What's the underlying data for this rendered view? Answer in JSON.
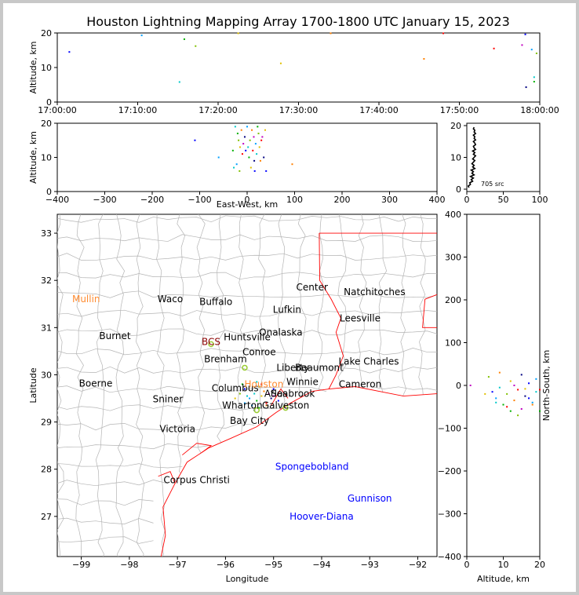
{
  "title": "Houston Lightning Mapping Array 1700-1800 UTC January 15, 2023",
  "colors": {
    "background": "#c8c8c8",
    "county_lines": "#b4b4b4",
    "state_lines": "#ff0000",
    "coast": "#ff0000",
    "station_text": "#0000ff",
    "highlight_city": "#ff8c32",
    "bcs": "#8b0000"
  },
  "chart_data": [
    {
      "id": "time_altitude",
      "type": "scatter",
      "ylabel": "Altitude, km",
      "xticks": [
        "17:00:00",
        "17:10:00",
        "17:20:00",
        "17:30:00",
        "17:40:00",
        "17:50:00",
        "18:00:00"
      ],
      "xlim_minutes": [
        0,
        60
      ],
      "yticks": [
        0,
        10,
        20
      ],
      "ylim": [
        0,
        20
      ],
      "points_minutes_km": [
        [
          1.5,
          14.5
        ],
        [
          10.5,
          19.3
        ],
        [
          15.2,
          5.8
        ],
        [
          15.8,
          18.2
        ],
        [
          17.2,
          16.2
        ],
        [
          27.8,
          11.2
        ],
        [
          45.6,
          12.5
        ],
        [
          54.3,
          15.5
        ],
        [
          57.8,
          16.5
        ],
        [
          58.3,
          4.3
        ],
        [
          58.2,
          19.6
        ],
        [
          59.0,
          15.2
        ],
        [
          59.3,
          7.2
        ],
        [
          59.3,
          5.9
        ],
        [
          59.6,
          14.1
        ],
        [
          22.5,
          19.9
        ],
        [
          34.0,
          19.9
        ],
        [
          48.0,
          19.9
        ]
      ]
    },
    {
      "id": "eastwest_altitude",
      "type": "scatter",
      "xlabel": "East-West, km",
      "ylabel": "Altitude, km",
      "xticks": [
        -400,
        -300,
        -200,
        -100,
        0,
        100,
        200,
        300,
        400
      ],
      "xlim": [
        -400,
        400
      ],
      "yticks": [
        0,
        10,
        20
      ],
      "ylim": [
        0,
        20
      ],
      "points_km": [
        [
          -110,
          15
        ],
        [
          -60,
          10
        ],
        [
          -25,
          19
        ],
        [
          -20,
          17
        ],
        [
          -18,
          15
        ],
        [
          -15,
          13
        ],
        [
          -12,
          18
        ],
        [
          -10,
          11
        ],
        [
          -8,
          14
        ],
        [
          -5,
          16
        ],
        [
          -3,
          12
        ],
        [
          0,
          19
        ],
        [
          2,
          13
        ],
        [
          4,
          10
        ],
        [
          6,
          15
        ],
        [
          8,
          7
        ],
        [
          10,
          18
        ],
        [
          12,
          12
        ],
        [
          14,
          16
        ],
        [
          15,
          9
        ],
        [
          16,
          6
        ],
        [
          18,
          14
        ],
        [
          20,
          11
        ],
        [
          22,
          19
        ],
        [
          24,
          17
        ],
        [
          26,
          13
        ],
        [
          28,
          9
        ],
        [
          30,
          15
        ],
        [
          32,
          16
        ],
        [
          35,
          10
        ],
        [
          40,
          6
        ],
        [
          -22,
          8
        ],
        [
          -28,
          7
        ],
        [
          -30,
          12
        ],
        [
          -16,
          6
        ],
        [
          38,
          18
        ],
        [
          95,
          8
        ]
      ]
    },
    {
      "id": "altitude_histogram",
      "type": "line",
      "annotation": "705 src",
      "xticks": [
        0,
        50,
        100
      ],
      "xlim": [
        0,
        100
      ],
      "yticks": [
        0,
        10,
        20
      ],
      "ylim": [
        0,
        20
      ],
      "profile_count_km": [
        [
          3,
          0.5
        ],
        [
          2,
          1
        ],
        [
          5,
          1.5
        ],
        [
          4,
          2
        ],
        [
          8,
          2.5
        ],
        [
          6,
          3
        ],
        [
          9,
          3.5
        ],
        [
          5,
          4
        ],
        [
          10,
          4.5
        ],
        [
          7,
          5
        ],
        [
          9,
          5.5
        ],
        [
          6,
          6
        ],
        [
          11,
          6.5
        ],
        [
          8,
          7
        ],
        [
          10,
          7.5
        ],
        [
          7,
          8
        ],
        [
          9,
          8.5
        ],
        [
          11,
          9
        ],
        [
          8,
          9.5
        ],
        [
          10,
          10
        ],
        [
          12,
          10.5
        ],
        [
          9,
          11
        ],
        [
          11,
          11.5
        ],
        [
          8,
          12
        ],
        [
          12,
          12.5
        ],
        [
          10,
          13
        ],
        [
          9,
          13.5
        ],
        [
          12,
          14
        ],
        [
          11,
          14.5
        ],
        [
          9,
          15
        ],
        [
          12,
          15.5
        ],
        [
          10,
          16
        ],
        [
          11,
          16.5
        ],
        [
          9,
          17
        ],
        [
          12,
          17.5
        ],
        [
          10,
          18
        ],
        [
          11,
          18.5
        ],
        [
          9,
          19
        ],
        [
          10,
          19.5
        ]
      ]
    },
    {
      "id": "map",
      "type": "scatter",
      "xlabel": "Longitude",
      "ylabel": "Latitude",
      "xticks": [
        -99,
        -98,
        -97,
        -96,
        -95,
        -94,
        -93,
        -92
      ],
      "xlim": [
        -99.5,
        -91.6
      ],
      "yticks": [
        27,
        28,
        29,
        30,
        31,
        32,
        33
      ],
      "ylim": [
        26.15,
        33.4
      ],
      "cities": [
        {
          "name": "Mullin",
          "lon": -98.9,
          "lat": 31.6,
          "color": "#ff8c32"
        },
        {
          "name": "Waco",
          "lon": -97.15,
          "lat": 31.6,
          "color": "#000000"
        },
        {
          "name": "Buffalo",
          "lon": -96.2,
          "lat": 31.55,
          "color": "#000000"
        },
        {
          "name": "Center",
          "lon": -94.2,
          "lat": 31.85,
          "color": "#000000"
        },
        {
          "name": "Natchitoches",
          "lon": -92.9,
          "lat": 31.75,
          "color": "#000000"
        },
        {
          "name": "Lufkin",
          "lon": -94.72,
          "lat": 31.38,
          "color": "#000000"
        },
        {
          "name": "Leesville",
          "lon": -93.2,
          "lat": 31.2,
          "color": "#000000"
        },
        {
          "name": "Burnet",
          "lon": -98.3,
          "lat": 30.82,
          "color": "#000000"
        },
        {
          "name": "BCS",
          "lon": -96.3,
          "lat": 30.7,
          "color": "#8b0000"
        },
        {
          "name": "Onalaska",
          "lon": -94.85,
          "lat": 30.9,
          "color": "#000000"
        },
        {
          "name": "Huntsville",
          "lon": -95.55,
          "lat": 30.8,
          "color": "#000000"
        },
        {
          "name": "Conroe",
          "lon": -95.3,
          "lat": 30.48,
          "color": "#000000"
        },
        {
          "name": "Brenham",
          "lon": -96.0,
          "lat": 30.33,
          "color": "#000000"
        },
        {
          "name": "Lake Charles",
          "lon": -93.02,
          "lat": 30.28,
          "color": "#000000"
        },
        {
          "name": "Beaumont",
          "lon": -94.05,
          "lat": 30.15,
          "color": "#000000"
        },
        {
          "name": "Liberty",
          "lon": -94.6,
          "lat": 30.15,
          "color": "#000000"
        },
        {
          "name": "Boerne",
          "lon": -98.7,
          "lat": 29.82,
          "color": "#000000"
        },
        {
          "name": "Cameron",
          "lon": -93.2,
          "lat": 29.8,
          "color": "#000000"
        },
        {
          "name": "Winnie",
          "lon": -94.4,
          "lat": 29.85,
          "color": "#000000"
        },
        {
          "name": "Columbus",
          "lon": -95.8,
          "lat": 29.72,
          "color": "#000000"
        },
        {
          "name": "Houston",
          "lon": -95.2,
          "lat": 29.8,
          "color": "#ff8c32"
        },
        {
          "name": "Atlas",
          "lon": -94.95,
          "lat": 29.6,
          "color": "#000000"
        },
        {
          "name": "Seabrook",
          "lon": -94.6,
          "lat": 29.6,
          "color": "#000000"
        },
        {
          "name": "Sniner",
          "lon": -97.2,
          "lat": 29.48,
          "color": "#000000"
        },
        {
          "name": "Wharton",
          "lon": -95.65,
          "lat": 29.35,
          "color": "#000000"
        },
        {
          "name": "Galveston",
          "lon": -94.75,
          "lat": 29.35,
          "color": "#000000"
        },
        {
          "name": "Bay City",
          "lon": -95.5,
          "lat": 29.03,
          "color": "#000000"
        },
        {
          "name": "Victoria",
          "lon": -97.0,
          "lat": 28.85,
          "color": "#000000"
        },
        {
          "name": "Spongebobland",
          "lon": -94.2,
          "lat": 28.05,
          "color": "#0000ff"
        },
        {
          "name": "Corpus Christi",
          "lon": -96.6,
          "lat": 27.77,
          "color": "#000000"
        },
        {
          "name": "Gunnison",
          "lon": -93.0,
          "lat": 27.38,
          "color": "#0000ff"
        },
        {
          "name": "Hoover-Diana",
          "lon": -94.0,
          "lat": 27.0,
          "color": "#0000ff"
        }
      ],
      "lightning_lonlat": [
        [
          -95.6,
          29.7
        ],
        [
          -95.5,
          29.5
        ],
        [
          -95.4,
          29.6
        ],
        [
          -95.35,
          29.45
        ],
        [
          -95.3,
          29.75
        ],
        [
          -95.25,
          29.55
        ],
        [
          -95.2,
          29.65
        ],
        [
          -95.15,
          29.4
        ],
        [
          -95.1,
          29.6
        ],
        [
          -95.05,
          29.5
        ],
        [
          -95.0,
          29.7
        ],
        [
          -95.45,
          29.35
        ],
        [
          -95.55,
          29.55
        ],
        [
          -95.3,
          29.3
        ],
        [
          -95.7,
          29.6
        ],
        [
          -95.8,
          29.5
        ],
        [
          -95.15,
          29.35
        ],
        [
          -95.25,
          29.8
        ],
        [
          -95.0,
          29.55
        ],
        [
          -95.4,
          29.25
        ],
        [
          -94.9,
          29.45
        ],
        [
          -95.6,
          29.4
        ],
        [
          -95.35,
          29.85
        ],
        [
          -95.65,
          29.8
        ]
      ]
    },
    {
      "id": "altitude_northsouth",
      "type": "scatter",
      "xlabel": "Altitude, km",
      "ylabel": "North-South, km",
      "xticks": [
        0,
        10,
        20
      ],
      "xlim": [
        0,
        20
      ],
      "yticks": [
        -400,
        -300,
        -200,
        -100,
        0,
        100,
        200,
        300,
        400
      ],
      "ylim": [
        -400,
        400
      ],
      "points_km": [
        [
          7,
          -15
        ],
        [
          8,
          -30
        ],
        [
          9,
          -5
        ],
        [
          10,
          -45
        ],
        [
          11,
          -20
        ],
        [
          12,
          10
        ],
        [
          13,
          -35
        ],
        [
          14,
          -10
        ],
        [
          15,
          -55
        ],
        [
          16,
          -25
        ],
        [
          17,
          5
        ],
        [
          18,
          -40
        ],
        [
          19,
          -15
        ],
        [
          20,
          -60
        ],
        [
          6,
          20
        ],
        [
          5,
          -20
        ],
        [
          9,
          30
        ],
        [
          11,
          -50
        ],
        [
          13,
          0
        ],
        [
          15,
          25
        ],
        [
          17,
          -30
        ],
        [
          19,
          15
        ],
        [
          8,
          -40
        ],
        [
          12,
          -60
        ],
        [
          14,
          -70
        ],
        [
          16,
          -8
        ],
        [
          18,
          -45
        ],
        [
          20,
          -10
        ],
        [
          1,
          0
        ]
      ]
    }
  ]
}
